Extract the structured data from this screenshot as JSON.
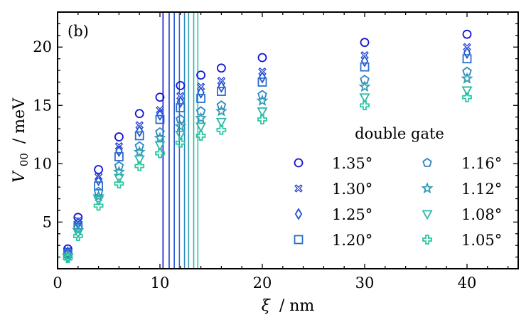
{
  "chart_data": {
    "type": "scatter",
    "panel_label": "(b)",
    "xlabel": {
      "symbol": "ξ",
      "unit": "/ nm"
    },
    "ylabel": {
      "symbol": "V",
      "subscript": "00",
      "unit": "/ meV"
    },
    "xlim": [
      0,
      45
    ],
    "ylim": [
      1,
      23
    ],
    "xticks": [
      0,
      10,
      20,
      30,
      40
    ],
    "yticks": [
      5,
      10,
      15,
      20
    ],
    "legend_title": "double gate",
    "legend_position": "center-right",
    "x": [
      1,
      2,
      4,
      6,
      8,
      10,
      12,
      14,
      16,
      20,
      30,
      40
    ],
    "series": [
      {
        "name": "1.35°",
        "marker": "circle",
        "color": "#1414d4",
        "vline": 10.3,
        "values": [
          2.7,
          5.4,
          9.5,
          12.3,
          14.3,
          15.7,
          16.7,
          17.6,
          18.2,
          19.1,
          20.4,
          21.1
        ]
      },
      {
        "name": "1.30°",
        "marker": "x",
        "color": "#1e3cd2",
        "vline": 10.9,
        "values": [
          2.5,
          5.1,
          8.9,
          11.5,
          13.3,
          14.6,
          15.8,
          16.6,
          17.1,
          17.9,
          19.3,
          20.0
        ]
      },
      {
        "name": "1.25°",
        "marker": "diamond",
        "color": "#2454d0",
        "vline": 11.4,
        "values": [
          2.4,
          4.9,
          8.6,
          11.1,
          12.8,
          14.2,
          15.3,
          16.1,
          16.6,
          17.4,
          18.8,
          19.5
        ]
      },
      {
        "name": "1.20°",
        "marker": "square",
        "color": "#2a6ccc",
        "vline": 11.9,
        "values": [
          2.3,
          4.7,
          8.1,
          10.6,
          12.4,
          13.8,
          14.8,
          15.6,
          16.2,
          17.0,
          18.3,
          19.0
        ]
      },
      {
        "name": "1.16°",
        "marker": "pentagon",
        "color": "#2e84c2",
        "vline": 12.4,
        "values": [
          2.2,
          4.5,
          7.6,
          9.8,
          11.5,
          12.7,
          13.8,
          14.5,
          15.0,
          15.9,
          17.2,
          17.9
        ]
      },
      {
        "name": "1.12°",
        "marker": "star",
        "color": "#309cb4",
        "vline": 12.8,
        "values": [
          2.1,
          4.3,
          7.2,
          9.3,
          11.0,
          12.2,
          13.2,
          13.9,
          14.5,
          15.4,
          16.6,
          17.3
        ]
      },
      {
        "name": "1.08°",
        "marker": "triangle-down",
        "color": "#2cb6a8",
        "vline": 13.3,
        "values": [
          2.0,
          4.1,
          6.9,
          8.8,
          10.4,
          11.6,
          12.5,
          13.2,
          13.6,
          14.5,
          15.7,
          16.3
        ]
      },
      {
        "name": "1.05°",
        "marker": "plus",
        "color": "#28c8a0",
        "vline": 13.7,
        "values": [
          1.9,
          3.8,
          6.4,
          8.3,
          9.8,
          10.9,
          11.8,
          12.4,
          12.9,
          13.8,
          15.0,
          15.7
        ]
      }
    ]
  }
}
